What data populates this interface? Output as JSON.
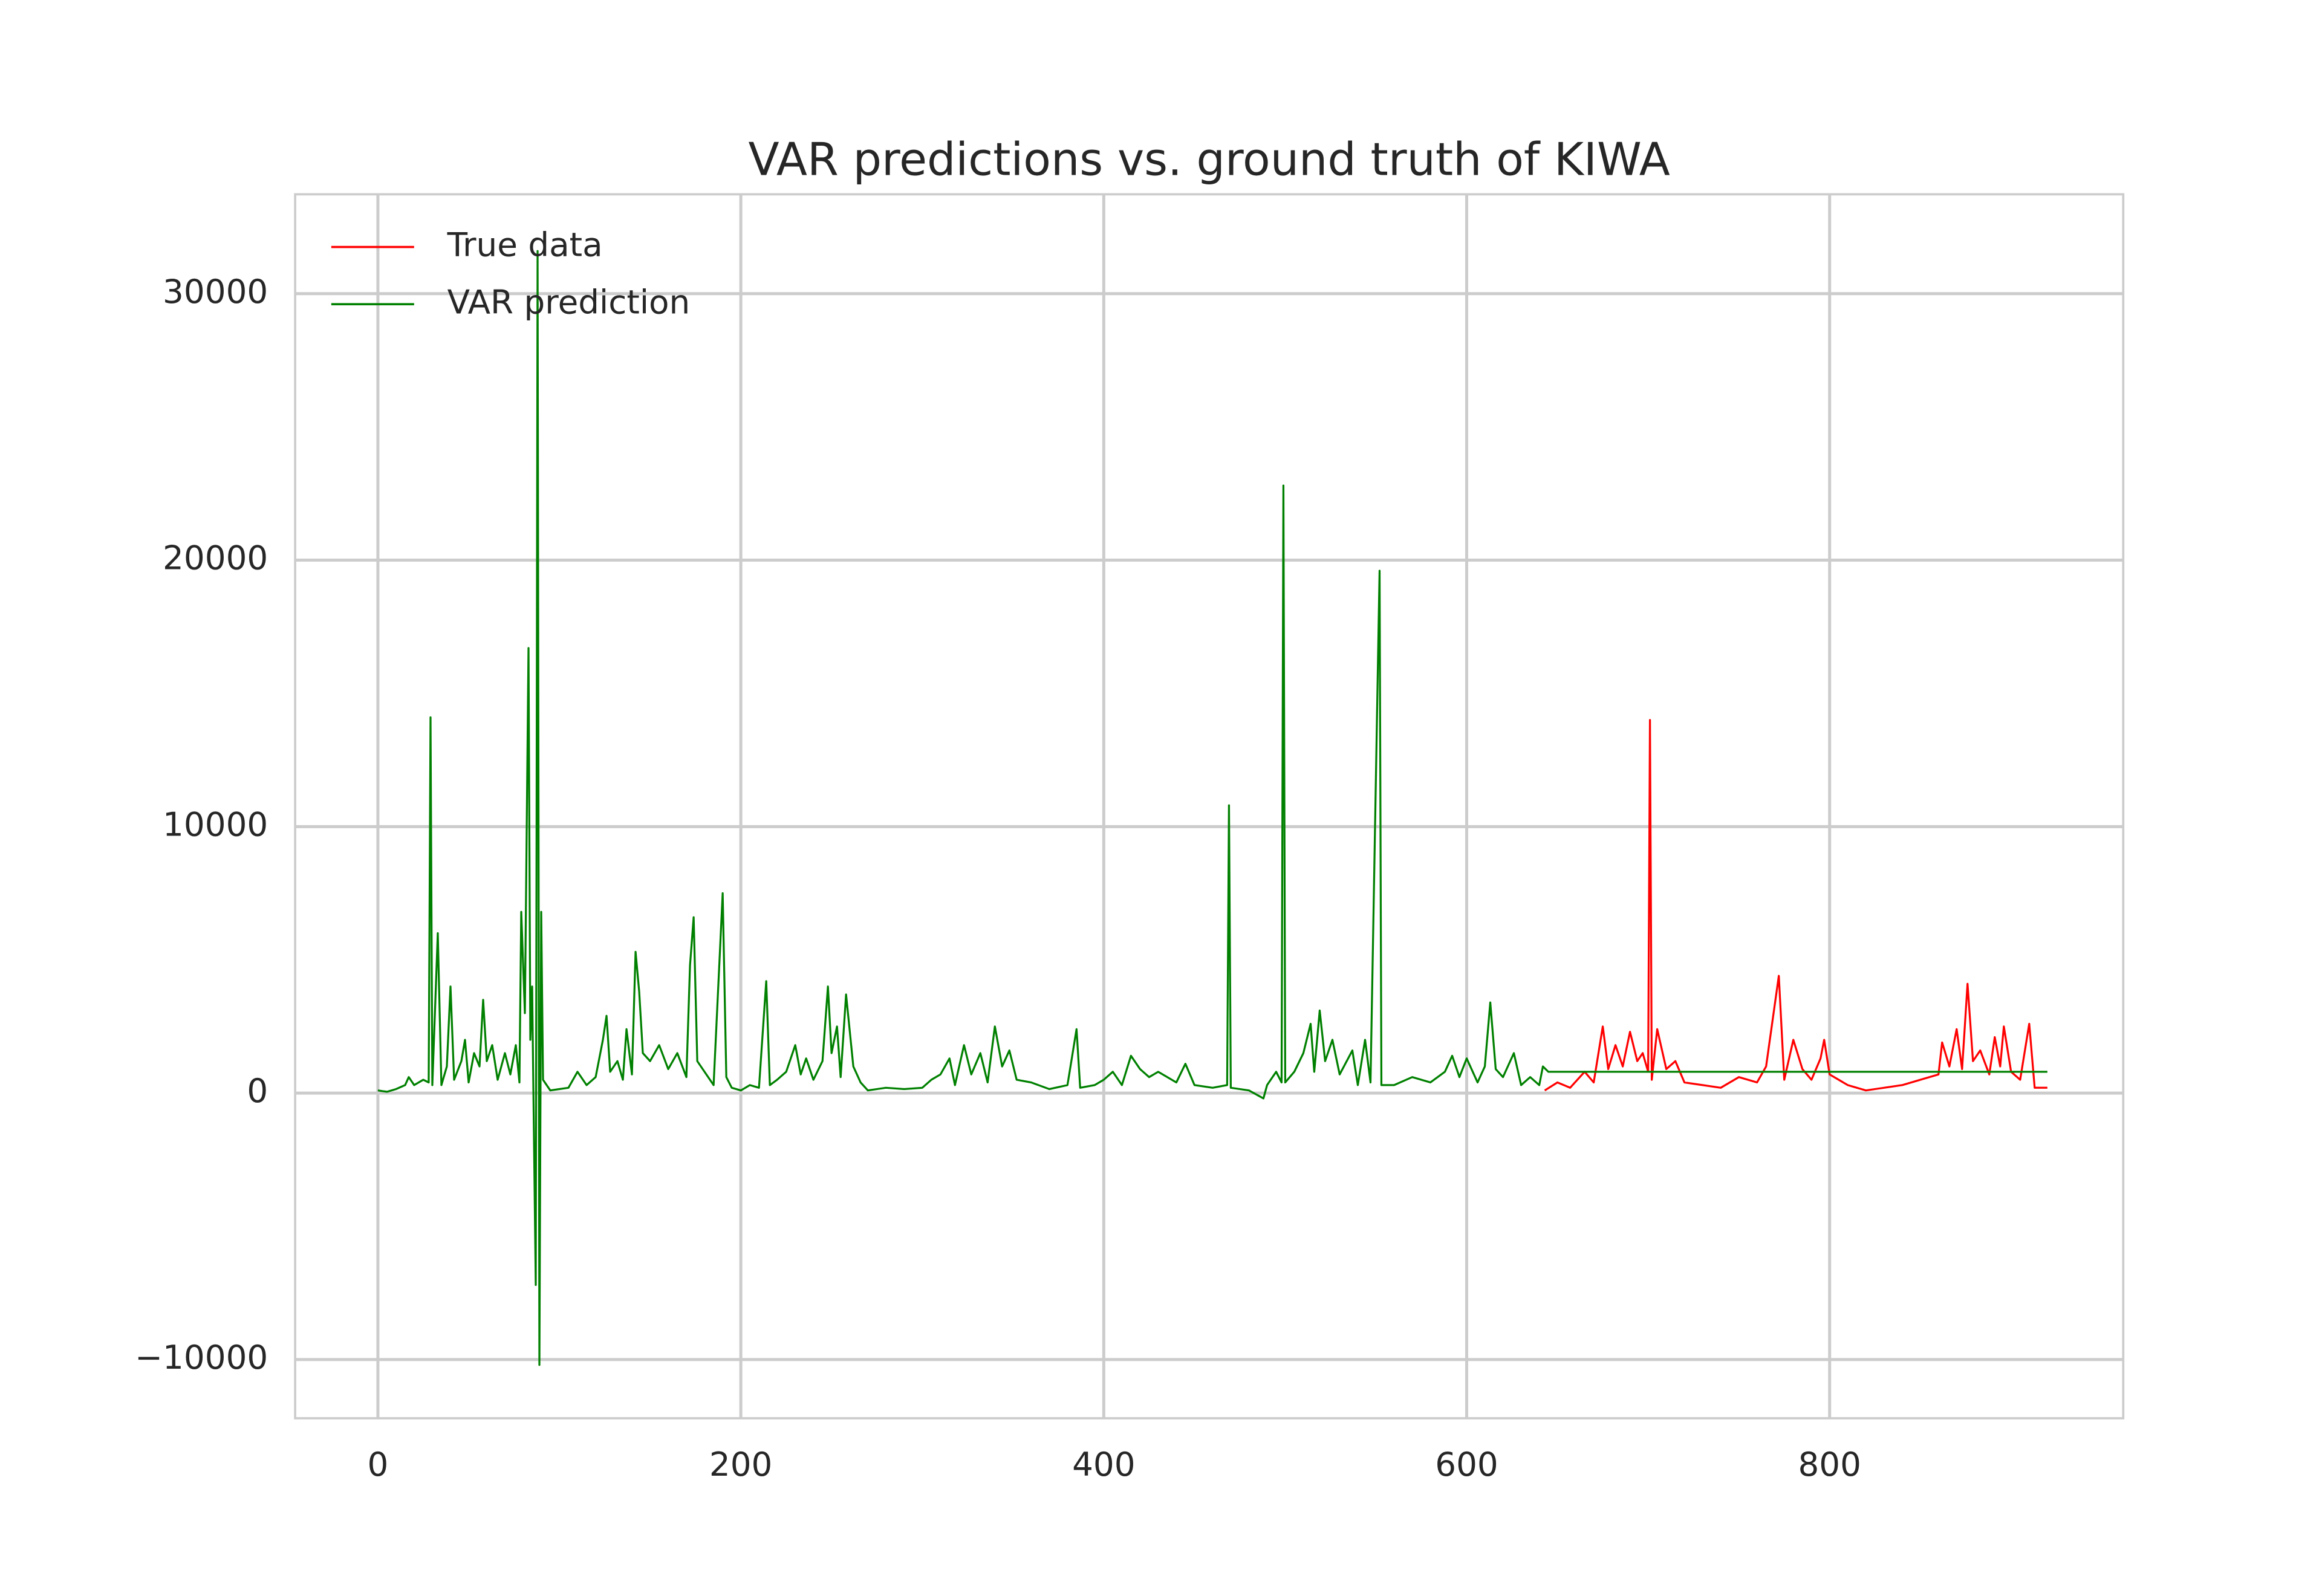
{
  "chart_data": {
    "type": "line",
    "title": "VAR predictions vs. ground truth of KIWA",
    "xlim": [
      -45.6,
      961.8
    ],
    "ylim": [
      -12203,
      33729
    ],
    "xticks": [
      0,
      200,
      400,
      600,
      800
    ],
    "yticks": [
      {
        "value": -10000,
        "label": "−10000"
      },
      0,
      10000,
      20000,
      30000
    ],
    "grid": true,
    "legend": "upper left",
    "series": [
      {
        "name": "True data",
        "color": "#ff0000",
        "x": [
          643,
          650,
          657,
          665,
          670,
          675,
          678,
          682,
          686,
          690,
          694,
          697,
          700,
          701,
          702,
          705,
          710,
          715,
          720,
          730,
          740,
          750,
          760,
          765,
          772,
          775,
          780,
          785,
          790,
          795,
          797,
          800,
          810,
          820,
          830,
          840,
          850,
          860,
          862,
          866,
          870,
          873,
          876,
          879,
          883,
          888,
          891,
          894,
          896,
          900,
          905,
          910,
          913,
          920
        ],
        "values": [
          100,
          400,
          200,
          800,
          400,
          2500,
          900,
          1800,
          1000,
          2300,
          1200,
          1500,
          800,
          14000,
          500,
          2400,
          900,
          1200,
          400,
          300,
          200,
          600,
          400,
          1000,
          4400,
          500,
          2000,
          900,
          500,
          1300,
          2000,
          700,
          300,
          100,
          200,
          300,
          500,
          700,
          1900,
          1000,
          2400,
          900,
          4100,
          1200,
          1600,
          700,
          2100,
          1000,
          2500,
          800,
          500,
          2600,
          200,
          200
        ]
      },
      {
        "name": "VAR prediction",
        "color": "#008000",
        "x": [
          0,
          5,
          10,
          15,
          17,
          20,
          25,
          28,
          29,
          30,
          33,
          35,
          38,
          40,
          42,
          46,
          48,
          50,
          53,
          56,
          58,
          60,
          63,
          66,
          70,
          73,
          76,
          78,
          79,
          81,
          83,
          84,
          85,
          87,
          88,
          89,
          90,
          91,
          95,
          100,
          105,
          110,
          115,
          120,
          124,
          126,
          128,
          132,
          135,
          137,
          140,
          142,
          144,
          146,
          150,
          155,
          160,
          165,
          170,
          172,
          174,
          176,
          180,
          185,
          190,
          192,
          195,
          200,
          205,
          210,
          214,
          216,
          220,
          225,
          230,
          233,
          236,
          240,
          245,
          248,
          250,
          253,
          255,
          258,
          262,
          266,
          270,
          280,
          290,
          300,
          305,
          310,
          315,
          318,
          323,
          327,
          332,
          336,
          340,
          344,
          348,
          352,
          360,
          370,
          380,
          385,
          387,
          395,
          400,
          405,
          410,
          415,
          420,
          425,
          430,
          440,
          445,
          450,
          460,
          468,
          469,
          470,
          480,
          488,
          490,
          495,
          498,
          499,
          500,
          505,
          510,
          514,
          516,
          519,
          522,
          526,
          530,
          537,
          540,
          544,
          547,
          552,
          553,
          560,
          570,
          580,
          588,
          592,
          596,
          600,
          606,
          610,
          613,
          616,
          620,
          626,
          630,
          635,
          640,
          642,
          645,
          920
        ],
        "values": [
          100,
          50,
          150,
          300,
          600,
          300,
          500,
          400,
          14100,
          300,
          6000,
          300,
          1000,
          4000,
          500,
          1200,
          2000,
          400,
          1500,
          1000,
          3500,
          1200,
          1800,
          500,
          1500,
          700,
          1800,
          400,
          6800,
          3000,
          16700,
          2000,
          4000,
          -7200,
          31600,
          -10200,
          6800,
          500,
          100,
          150,
          200,
          800,
          300,
          600,
          2000,
          2900,
          800,
          1200,
          500,
          2400,
          700,
          5300,
          3800,
          1500,
          1200,
          1800,
          900,
          1500,
          600,
          4800,
          6600,
          1200,
          800,
          300,
          7500,
          600,
          200,
          100,
          300,
          200,
          4200,
          300,
          500,
          800,
          1800,
          700,
          1300,
          500,
          1200,
          4000,
          1500,
          2500,
          600,
          3700,
          1000,
          400,
          100,
          200,
          150,
          200,
          500,
          700,
          1300,
          300,
          1800,
          700,
          1500,
          400,
          2500,
          1000,
          1600,
          500,
          400,
          150,
          300,
          2400,
          200,
          300,
          500,
          800,
          300,
          1400,
          900,
          600,
          800,
          400,
          1100,
          300,
          200,
          300,
          10800,
          200,
          100,
          -200,
          300,
          800,
          400,
          22800,
          400,
          800,
          1500,
          2600,
          800,
          3100,
          1200,
          2000,
          700,
          1600,
          300,
          2000,
          400,
          19600,
          300,
          300,
          600,
          400,
          800,
          1400,
          600,
          1300,
          400,
          1000,
          3400,
          900,
          600,
          1500,
          300,
          600,
          300,
          1000,
          800,
          800
        ]
      }
    ]
  }
}
